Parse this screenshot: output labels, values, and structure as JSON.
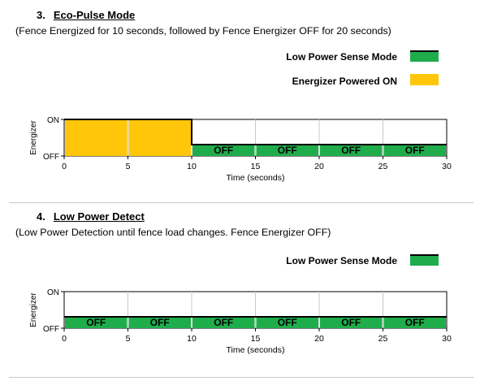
{
  "sections": [
    {
      "number": "3.",
      "title": "Eco-Pulse Mode",
      "subtitle": "(Fence Energized for 10 seconds, followed by Fence Energizer OFF for 20 seconds)",
      "legend": [
        {
          "label": "Low Power Sense Mode",
          "icon": "green-swatch",
          "color": "#1fad4b"
        },
        {
          "label": "Energizer Powered ON",
          "icon": "yellow-swatch",
          "color": "#ffc60a"
        }
      ],
      "chart_data": {
        "type": "timeline",
        "xlabel": "Time (seconds)",
        "ylabel": "Energizer",
        "xlim": [
          0,
          30
        ],
        "xticks": [
          0,
          5,
          10,
          15,
          20,
          25,
          30
        ],
        "y_levels": [
          "OFF",
          "ON"
        ],
        "segments": [
          {
            "start": 0,
            "end": 5,
            "state": "ON",
            "label": "",
            "color": "#ffc60a"
          },
          {
            "start": 5,
            "end": 10,
            "state": "ON",
            "label": "",
            "color": "#ffc60a"
          },
          {
            "start": 10,
            "end": 15,
            "state": "OFF",
            "label": "OFF",
            "color": "#1fad4b"
          },
          {
            "start": 15,
            "end": 20,
            "state": "OFF",
            "label": "OFF",
            "color": "#1fad4b"
          },
          {
            "start": 20,
            "end": 25,
            "state": "OFF",
            "label": "OFF",
            "color": "#1fad4b"
          },
          {
            "start": 25,
            "end": 30,
            "state": "OFF",
            "label": "OFF",
            "color": "#1fad4b"
          }
        ],
        "grid": true
      }
    },
    {
      "number": "4.",
      "title": "Low Power Detect",
      "subtitle": "(Low Power Detection until fence load changes. Fence Energizer OFF)",
      "legend": [
        {
          "label": "Low Power Sense Mode",
          "icon": "green-swatch",
          "color": "#1fad4b"
        }
      ],
      "chart_data": {
        "type": "timeline",
        "xlabel": "Time (seconds)",
        "ylabel": "Energizer",
        "xlim": [
          0,
          30
        ],
        "xticks": [
          0,
          5,
          10,
          15,
          20,
          25,
          30
        ],
        "y_levels": [
          "OFF",
          "ON"
        ],
        "segments": [
          {
            "start": 0,
            "end": 5,
            "state": "OFF",
            "label": "OFF",
            "color": "#1fad4b"
          },
          {
            "start": 5,
            "end": 10,
            "state": "OFF",
            "label": "OFF",
            "color": "#1fad4b"
          },
          {
            "start": 10,
            "end": 15,
            "state": "OFF",
            "label": "OFF",
            "color": "#1fad4b"
          },
          {
            "start": 15,
            "end": 20,
            "state": "OFF",
            "label": "OFF",
            "color": "#1fad4b"
          },
          {
            "start": 20,
            "end": 25,
            "state": "OFF",
            "label": "OFF",
            "color": "#1fad4b"
          },
          {
            "start": 25,
            "end": 30,
            "state": "OFF",
            "label": "OFF",
            "color": "#1fad4b"
          }
        ],
        "grid": true
      }
    }
  ]
}
